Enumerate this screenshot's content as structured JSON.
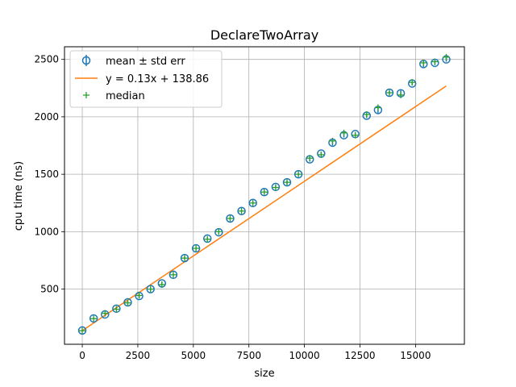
{
  "chart_data": {
    "type": "scatter",
    "title": "DeclareTwoArray",
    "xlabel": "size",
    "ylabel": "cpu time (ns)",
    "xlim": [
      -800,
      17200
    ],
    "ylim": [
      20,
      2610
    ],
    "grid": true,
    "legend_position": "top-left",
    "x_ticks": [
      0,
      2500,
      5000,
      7500,
      10000,
      12500,
      15000
    ],
    "x_tick_labels": [
      "0",
      "2500",
      "5000",
      "7500",
      "10000",
      "12500",
      "15000"
    ],
    "y_ticks": [
      500,
      1000,
      1500,
      2000,
      2500
    ],
    "y_tick_labels": [
      "500",
      "1000",
      "1500",
      "2000",
      "2500"
    ],
    "colors": {
      "mean": "#1f77b4",
      "fit": "#ff7f0e",
      "median": "#2ca02c",
      "grid": "#b0b0b0"
    },
    "legend": [
      {
        "label": "mean ± std err",
        "marker": "circle-errorbar"
      },
      {
        "label": "y = 0.13x + 138.86",
        "marker": "line"
      },
      {
        "label": "median",
        "marker": "plus"
      }
    ],
    "fit": {
      "slope": 0.13,
      "intercept": 138.86,
      "x_range": [
        0,
        16384
      ]
    },
    "series": [
      {
        "name": "mean ± std err",
        "kind": "errorbar",
        "x": [
          0,
          512,
          1024,
          1536,
          2048,
          2560,
          3072,
          3584,
          4096,
          4608,
          5120,
          5632,
          6144,
          6656,
          7168,
          7680,
          8192,
          8704,
          9216,
          9728,
          10240,
          10752,
          11264,
          11776,
          12288,
          12800,
          13312,
          13824,
          14336,
          14848,
          15360,
          15872,
          16384
        ],
        "y": [
          140,
          245,
          280,
          330,
          385,
          440,
          500,
          550,
          625,
          770,
          855,
          940,
          995,
          1115,
          1180,
          1250,
          1345,
          1390,
          1430,
          1500,
          1630,
          1680,
          1775,
          1840,
          1850,
          2010,
          2060,
          2210,
          2205,
          2290,
          2460,
          2470,
          2500
        ],
        "err": [
          8,
          8,
          10,
          8,
          10,
          12,
          15,
          15,
          10,
          10,
          10,
          10,
          10,
          10,
          10,
          10,
          10,
          10,
          15,
          10,
          20,
          15,
          25,
          20,
          15,
          20,
          25,
          15,
          25,
          15,
          25,
          20,
          20
        ]
      },
      {
        "name": "median",
        "kind": "scatter",
        "x": [
          0,
          512,
          1024,
          1536,
          2048,
          2560,
          3072,
          3584,
          4096,
          4608,
          5120,
          5632,
          6144,
          6656,
          7168,
          7680,
          8192,
          8704,
          9216,
          9728,
          10240,
          10752,
          11264,
          11776,
          12288,
          12800,
          13312,
          13824,
          14336,
          14848,
          15360,
          15872,
          16384
        ],
        "y": [
          138,
          243,
          290,
          325,
          380,
          445,
          500,
          540,
          625,
          770,
          855,
          935,
          1000,
          1115,
          1180,
          1250,
          1345,
          1385,
          1430,
          1500,
          1640,
          1670,
          1790,
          1860,
          1840,
          2020,
          2080,
          2210,
          2190,
          2300,
          2470,
          2480,
          2520
        ]
      }
    ]
  }
}
